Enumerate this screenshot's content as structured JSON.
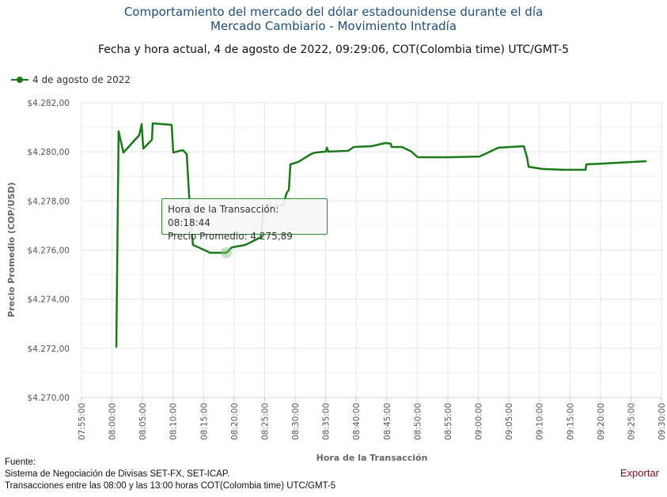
{
  "chart_data": {
    "type": "line",
    "title": "Comportamiento del mercado del dólar estadounidense durante el día",
    "subtitle_1": "Mercado Cambiario - Movimiento Intradía",
    "subtitle_2": "Fecha y hora actual, 4 de agosto de 2022, 09:29:06, COT(Colombia time) UTC/GMT-5",
    "xlabel": "Hora de la Transacción",
    "ylabel": "Precio Promedio (COP/USD)",
    "ylim": [
      4270,
      4282
    ],
    "xlim": [
      "07:55:00",
      "09:30:00"
    ],
    "yticks": [
      "$4.270,00",
      "$4.272,00",
      "$4.274,00",
      "$4.276,00",
      "$4.278,00",
      "$4.280,00",
      "$4.282,00"
    ],
    "xticks": [
      "07:55:00",
      "08:00:00",
      "08:05:00",
      "08:10:00",
      "08:15:00",
      "08:20:00",
      "08:25:00",
      "08:30:00",
      "08:35:00",
      "08:40:00",
      "08:45:00",
      "08:50:00",
      "08:55:00",
      "09:00:00",
      "09:05:00",
      "09:10:00",
      "09:15:00",
      "09:20:00",
      "09:25:00",
      "09:30:00"
    ],
    "grid": true,
    "legend_position": "top-left",
    "series": [
      {
        "name": "4 de agosto de 2022",
        "color": "#1a7a1a",
        "points": [
          [
            "08:00:42",
            4272.03
          ],
          [
            "08:01:05",
            4280.84
          ],
          [
            "08:01:52",
            4279.97
          ],
          [
            "08:04:28",
            4280.68
          ],
          [
            "08:04:51",
            4281.13
          ],
          [
            "08:05:07",
            4280.13
          ],
          [
            "08:06:32",
            4280.49
          ],
          [
            "08:06:40",
            4281.16
          ],
          [
            "08:09:46",
            4281.1
          ],
          [
            "08:10:02",
            4279.97
          ],
          [
            "08:11:35",
            4280.07
          ],
          [
            "08:12:14",
            4279.91
          ],
          [
            "08:12:30",
            4278.78
          ],
          [
            "08:12:53",
            4277.17
          ],
          [
            "08:13:16",
            4276.21
          ],
          [
            "08:15:37",
            4275.95
          ],
          [
            "08:16:00",
            4275.89
          ],
          [
            "08:18:44",
            4275.89
          ],
          [
            "08:19:37",
            4276.11
          ],
          [
            "08:21:50",
            4276.21
          ],
          [
            "08:24:25",
            4276.53
          ],
          [
            "08:24:49",
            4277.75
          ],
          [
            "08:28:03",
            4277.82
          ],
          [
            "08:28:34",
            4278.3
          ],
          [
            "08:28:58",
            4278.46
          ],
          [
            "08:29:13",
            4279.49
          ],
          [
            "08:30:31",
            4279.59
          ],
          [
            "08:32:35",
            4279.91
          ],
          [
            "08:33:14",
            4279.97
          ],
          [
            "08:35:03",
            4280.01
          ],
          [
            "08:35:11",
            4280.17
          ],
          [
            "08:35:26",
            4280.01
          ],
          [
            "08:38:41",
            4280.04
          ],
          [
            "08:39:35",
            4280.2
          ],
          [
            "08:42:34",
            4280.23
          ],
          [
            "08:44:46",
            4280.36
          ],
          [
            "08:45:40",
            4280.33
          ],
          [
            "08:45:48",
            4280.2
          ],
          [
            "08:47:29",
            4280.2
          ],
          [
            "08:49:03",
            4280.01
          ],
          [
            "08:50:05",
            4279.78
          ],
          [
            "08:55:16",
            4279.78
          ],
          [
            "09:00:11",
            4279.81
          ],
          [
            "09:01:21",
            4279.94
          ],
          [
            "09:03:18",
            4280.17
          ],
          [
            "09:07:27",
            4280.23
          ],
          [
            "09:07:58",
            4279.78
          ],
          [
            "09:08:14",
            4279.39
          ],
          [
            "09:10:34",
            4279.3
          ],
          [
            "09:13:56",
            4279.27
          ],
          [
            "09:17:34",
            4279.27
          ],
          [
            "09:17:41",
            4279.49
          ],
          [
            "09:20:09",
            4279.52
          ],
          [
            "09:27:32",
            4279.62
          ]
        ]
      }
    ],
    "tooltip": {
      "time_line": "Hora de la Transacción: 08:18:44",
      "price_line": "Precio Promedio: 4.275,89",
      "time": "08:18:44",
      "value": 4275.89
    }
  },
  "footer": {
    "source_label": "Fuente:",
    "source_line": "Sistema de Negociación de Divisas SET-FX, SET-ICAP.",
    "hours_line": "Transacciones entre las 08:00 y las 13:00 horas COT(Colombia time) UTC/GMT-5"
  },
  "export_label": "Exportar"
}
